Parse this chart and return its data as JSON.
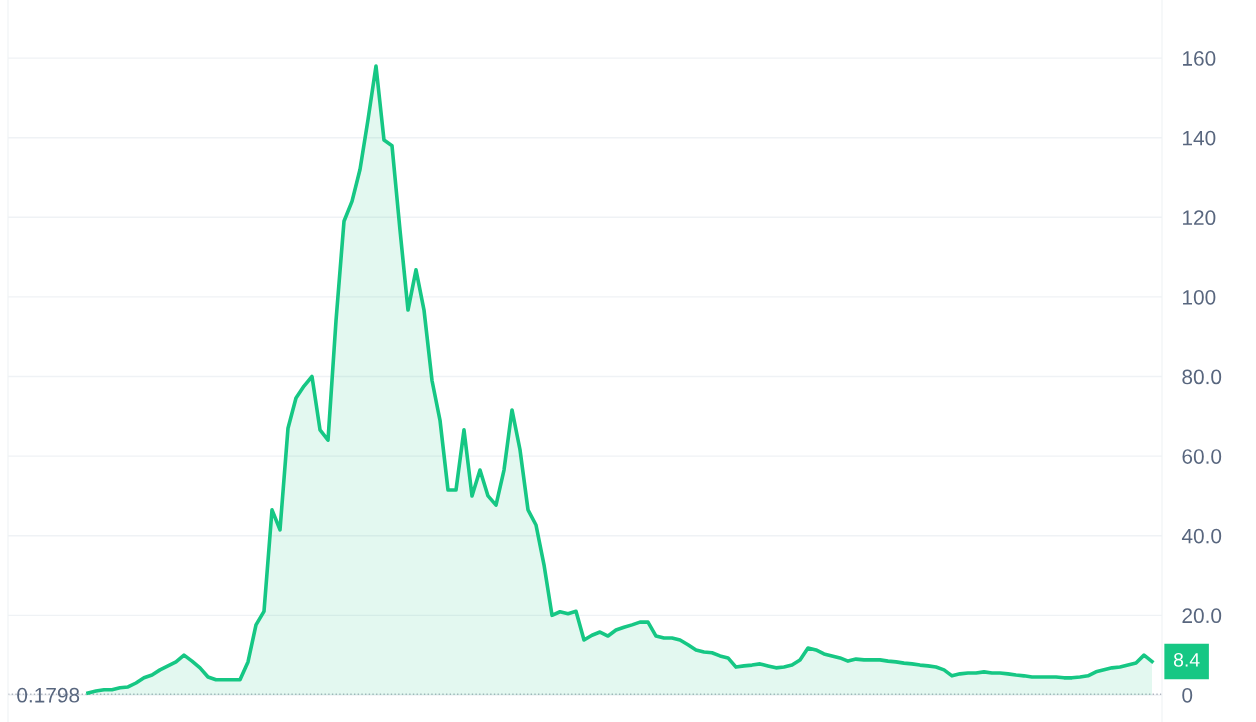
{
  "chart_data": {
    "type": "area",
    "categories": [
      null,
      null,
      null,
      null,
      null,
      null,
      null,
      null,
      null,
      null,
      null,
      null,
      null,
      null,
      null,
      null,
      null,
      null,
      null,
      null,
      null,
      null,
      null,
      null,
      null,
      null,
      null,
      null,
      null,
      null,
      null,
      null,
      null,
      null,
      null,
      null,
      null,
      null,
      null,
      null,
      null,
      null,
      null,
      null,
      null,
      null,
      null,
      null,
      null,
      null,
      null,
      null,
      null,
      null,
      null,
      null,
      null,
      null,
      null,
      null,
      null,
      null,
      null,
      null,
      null,
      null,
      null,
      null,
      null,
      null,
      null,
      null,
      null,
      null,
      null,
      null,
      null,
      null,
      null,
      null,
      null,
      null,
      null,
      null,
      null,
      null,
      null,
      null,
      null,
      null,
      null,
      null,
      null,
      null,
      null,
      null,
      null,
      null,
      null,
      null,
      null,
      null,
      null,
      null,
      null,
      null,
      null,
      null,
      null,
      null,
      null,
      null,
      null,
      null,
      null,
      null,
      null,
      null,
      null,
      null,
      null,
      null,
      null,
      null,
      null,
      null,
      null,
      null,
      null,
      null,
      null,
      null,
      null,
      null
    ],
    "series": [
      {
        "color": "#16c784",
        "values": [
          0.5,
          1.0,
          1.3,
          1.3,
          1.8,
          2.0,
          3.0,
          4.3,
          5.0,
          6.3,
          7.3,
          8.3,
          10.0,
          8.5,
          6.8,
          4.5,
          3.8,
          3.8,
          3.8,
          3.8,
          8.3,
          17.6,
          21,
          46.5,
          41.5,
          67,
          74.6,
          77.6,
          80,
          66.6,
          64,
          94,
          119,
          124,
          132,
          144.5,
          158,
          139.4,
          138,
          116.8,
          96.7,
          106.8,
          96.7,
          79,
          69,
          51.5,
          51.5,
          66.6,
          50,
          56.5,
          50,
          47.7,
          56.5,
          71.6,
          61.6,
          46.5,
          42.7,
          32.7,
          20,
          20.9,
          20.4,
          21,
          13.8,
          15,
          15.8,
          14.8,
          16.3,
          17,
          17.6,
          18.3,
          18.3,
          14.8,
          14.3,
          14.3,
          13.8,
          12.6,
          11.3,
          10.8,
          10.6,
          9.8,
          9.3,
          7,
          7.3,
          7.5,
          7.8,
          7.3,
          6.8,
          7,
          7.5,
          8.8,
          11.8,
          11.3,
          10.3,
          9.8,
          9.3,
          8.5,
          9,
          8.8,
          8.8,
          8.8,
          8.5,
          8.3,
          8,
          7.8,
          7.5,
          7.3,
          7,
          6.3,
          4.8,
          5.3,
          5.5,
          5.5,
          5.8,
          5.5,
          5.5,
          5.3,
          5,
          4.8,
          4.5,
          4.5,
          4.5,
          4.5,
          4.3,
          4.3,
          4.5,
          4.8,
          5.8,
          6.3,
          6.8,
          7,
          7.5,
          8,
          10,
          8.4
        ],
        "value_labels": [
          null,
          null,
          null,
          null,
          null,
          null,
          null,
          null,
          null,
          null,
          null,
          null,
          null,
          null,
          null,
          null,
          null,
          null,
          null,
          null,
          null,
          null,
          null,
          null,
          null,
          null,
          null,
          null,
          null,
          null,
          null,
          null,
          null,
          null,
          null,
          null,
          null,
          null,
          null,
          null,
          null,
          null,
          null,
          null,
          null,
          null,
          null,
          null,
          null,
          null,
          null,
          null,
          null,
          null,
          null,
          null,
          null,
          null,
          null,
          null,
          null,
          null,
          null,
          null,
          null,
          null,
          null,
          null,
          null,
          null,
          null,
          null,
          null,
          null,
          null,
          null,
          null,
          null,
          null,
          null,
          null,
          null,
          null,
          null,
          null,
          null,
          null,
          null,
          null,
          null,
          null,
          null,
          null,
          null,
          null,
          null,
          null,
          null,
          null,
          null,
          null,
          null,
          null,
          null,
          null,
          null,
          null,
          null,
          null,
          null,
          null,
          null,
          null,
          null,
          null,
          null,
          null,
          null,
          null,
          null,
          null,
          null,
          null,
          null,
          null,
          null,
          null,
          null,
          null,
          null,
          null,
          null,
          null,
          "8.4"
        ]
      }
    ],
    "ylim": [
      -6.8,
      174.6
    ],
    "yticks": [
      0,
      {
        "value": 20,
        "label": "20.0"
      },
      {
        "value": 40,
        "label": "40.0"
      },
      {
        "value": 60,
        "label": "60.0"
      },
      {
        "value": 80,
        "label": "80.0"
      },
      100,
      120,
      140,
      160
    ],
    "ref_lines": [
      {
        "axis": "y",
        "value": 0.1798,
        "label": "0.1798",
        "color": "#b0b6c0",
        "line_style": "dotted"
      }
    ],
    "grid": "y",
    "legend": false
  }
}
